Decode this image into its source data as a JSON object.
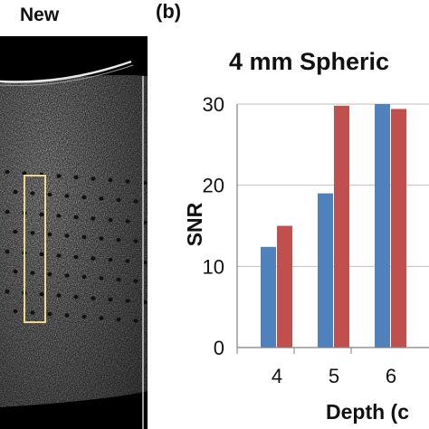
{
  "panel_a": {
    "label": "New"
  },
  "panel_b": {
    "label": "(b)"
  },
  "colors": {
    "series1": "#4f81bd",
    "series2": "#c0504d",
    "grid": "#bfbfbf",
    "axis": "#7f7f7f"
  },
  "chart_data": {
    "type": "bar",
    "title": "4 mm Spheric",
    "xlabel": "Depth (c",
    "ylabel": "SNR",
    "categories": [
      "4",
      "5",
      "6"
    ],
    "series": [
      {
        "values": [
          12.4,
          19.0,
          30.0
        ]
      },
      {
        "values": [
          15.0,
          29.8,
          29.4
        ]
      }
    ],
    "yticks": [
      0,
      10,
      20,
      30
    ],
    "ylim": [
      0,
      30
    ],
    "grid": true
  }
}
